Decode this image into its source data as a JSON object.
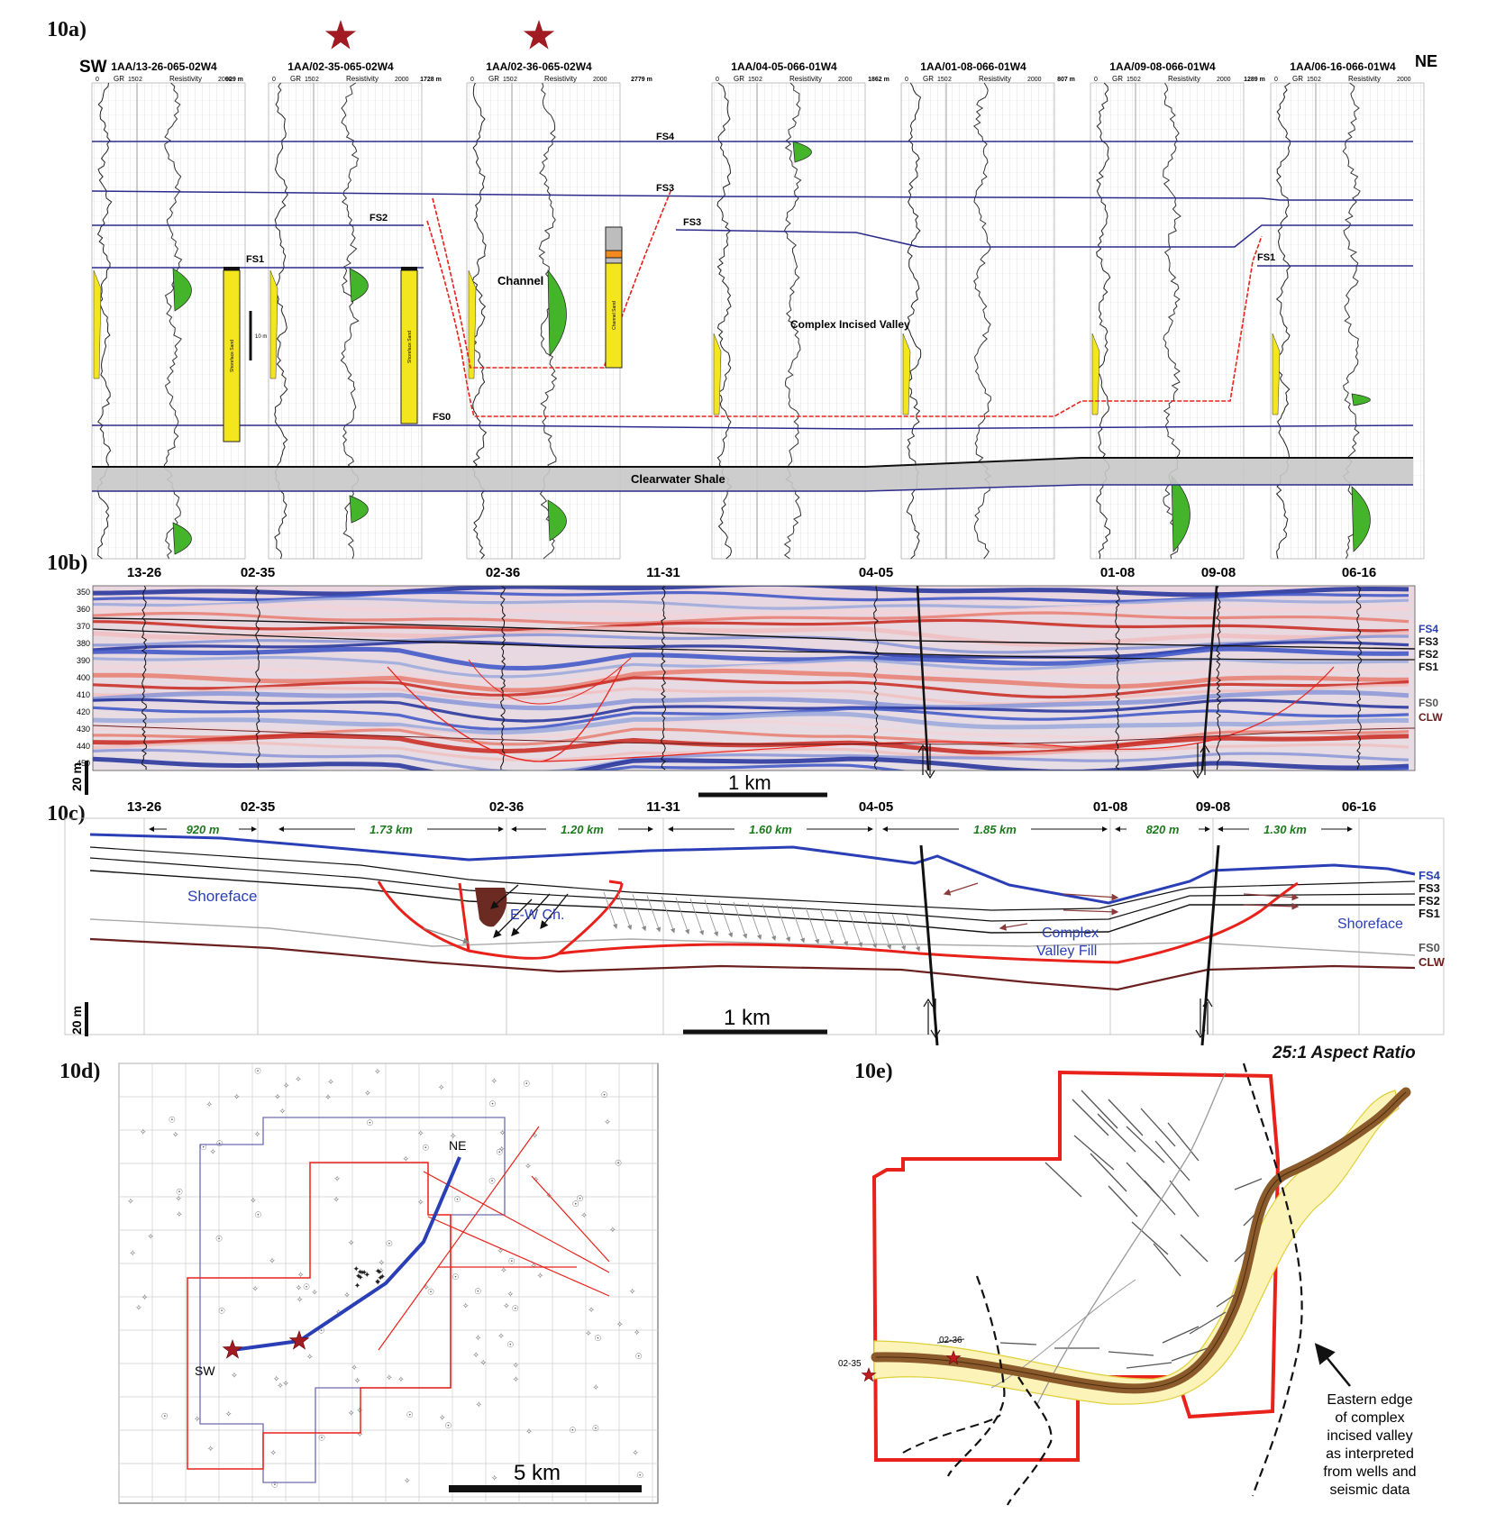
{
  "panels": {
    "a": {
      "label": "10a)",
      "sw": "SW",
      "ne": "NE",
      "wells": [
        {
          "name": "1AA/13-26-065-02W4",
          "star": false
        },
        {
          "name": "1AA/02-35-065-02W4",
          "star": true
        },
        {
          "name": "1AA/02-36-065-02W4",
          "star": true
        },
        {
          "name": "1AA/04-05-066-01W4",
          "star": false
        },
        {
          "name": "1AA/01-08-066-01W4",
          "star": false
        },
        {
          "name": "1AA/09-08-066-01W4",
          "star": false
        },
        {
          "name": "1AA/06-16-066-01W4",
          "star": false
        }
      ],
      "log_header": {
        "gr": "GR",
        "resistivity": "Resistivity",
        "gr_scale": "0    150",
        "res_scale": "2    2000"
      },
      "distances": [
        "929 m",
        "1728 m",
        "2779 m",
        "1862 m",
        "807 m",
        "1289 m"
      ],
      "horizons": {
        "fs4": "FS4",
        "fs3": "FS3",
        "fs2": "FS2",
        "fs1": "FS1",
        "fs0": "FS0"
      },
      "labels": {
        "channel": "Channel",
        "civ": "Complex Incised Valley",
        "shale": "Clearwater Shale",
        "scale": "10 m"
      },
      "core_labels": [
        "Shoreface Sand",
        "Shoreface Sand",
        "Channel Sand"
      ]
    },
    "b": {
      "label": "10b)",
      "wells": [
        "13-26",
        "02-35",
        "02-36",
        "11-31",
        "04-05",
        "01-08",
        "09-08",
        "06-16"
      ],
      "depth_ticks": [
        "350",
        "360",
        "370",
        "380",
        "390",
        "400",
        "410",
        "420",
        "430",
        "440",
        "450"
      ],
      "horizons": [
        "FS4",
        "FS3",
        "FS2",
        "FS1",
        "FS0",
        "CLW"
      ],
      "scale_v": "20 m",
      "scale_h": "1 km"
    },
    "c": {
      "label": "10c)",
      "wells": [
        "13-26",
        "02-35",
        "02-36",
        "11-31",
        "04-05",
        "01-08",
        "09-08",
        "06-16"
      ],
      "distances": [
        "920 m",
        "1.73 km",
        "1.20 km",
        "1.60 km",
        "1.85 km",
        "820 m",
        "1.30 km"
      ],
      "horizons": [
        "FS4",
        "FS3",
        "FS2",
        "FS1",
        "FS0",
        "CLW"
      ],
      "labels": {
        "shoreface_left": "Shoreface",
        "ew_channel": "E-W Ch.",
        "cvf_1": "Complex",
        "cvf_2": "Valley Fill",
        "shoreface_right": "Shoreface"
      },
      "scale_v": "20 m",
      "scale_h": "1 km"
    },
    "d": {
      "label": "10d)",
      "ne": "NE",
      "sw": "SW",
      "scale": "5 km"
    },
    "e": {
      "label": "10e)",
      "title": "25:1 Aspect Ratio",
      "well_labels": [
        "02-36",
        "02-35"
      ],
      "note": [
        "Eastern edge",
        "of complex",
        "incised valley",
        "as interpreted",
        "from wells and",
        "seismic data"
      ]
    }
  },
  "colors": {
    "horizon": "#2b2b8c",
    "incision": "#e8221b",
    "sand": "#f4e61e",
    "gr_fill": "#44b52a",
    "shale": "#c8c8c8",
    "star": "#a01c22",
    "fs4_blue": "#2a3fb5",
    "clw": "#6b2020",
    "channel_fill": "#6b2b22",
    "valley_belt": "#8b5a2b",
    "belt_fill": "#fbf3b8",
    "distance_green": "#1d7a1d"
  }
}
